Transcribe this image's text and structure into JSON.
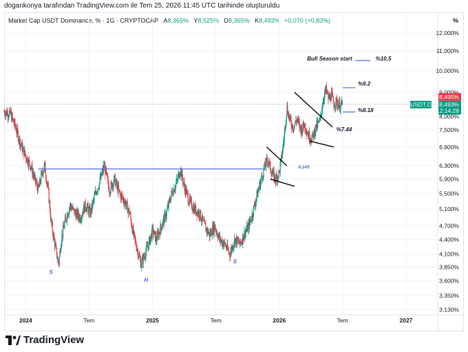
{
  "caption": "dogankonya tarafından TradingView.com ile Tem 25, 2026 11:45 UTC tarihinde oluşturuldu",
  "legend": {
    "symbol": "Market Cap USDT Dominance, % · 1G · CRYPTOCAP",
    "open_label": "A",
    "open": "8,365%",
    "high_label": "Y",
    "high": "8,525%",
    "low_label": "D",
    "low": "8,365%",
    "close_label": "K",
    "close": "8,493%",
    "change": "+0,070 (+0,83%)"
  },
  "percent_header": "%",
  "brand": "TradingView",
  "colors": {
    "up": "#089981",
    "down": "#f23645",
    "drawing": "#4a6cdb",
    "trendline": "#000000"
  },
  "chart_data": {
    "type": "candlestick",
    "title": "Market Cap USDT Dominance",
    "y_scale": "log",
    "ylim": [
      3.05,
      12.5
    ],
    "y_ticks": [
      {
        "value": 12.0,
        "label": "12,000%"
      },
      {
        "value": 11.0,
        "label": "11,000%"
      },
      {
        "value": 10.0,
        "label": "10,000%"
      },
      {
        "value": 9.0,
        "label": "9,000%"
      },
      {
        "value": 8.0,
        "label": "8,000%"
      },
      {
        "value": 7.5,
        "label": "7,500%"
      },
      {
        "value": 6.9,
        "label": "6,900%"
      },
      {
        "value": 6.3,
        "label": "6,300%"
      },
      {
        "value": 5.9,
        "label": "5,900%"
      },
      {
        "value": 5.5,
        "label": "5,500%"
      },
      {
        "value": 5.1,
        "label": "5,100%"
      },
      {
        "value": 4.7,
        "label": "4,700%"
      },
      {
        "value": 4.4,
        "label": "4,400%"
      },
      {
        "value": 4.1,
        "label": "4,100%"
      },
      {
        "value": 3.85,
        "label": "3,850%"
      },
      {
        "value": 3.6,
        "label": "3,600%"
      },
      {
        "value": 3.35,
        "label": "3,350%"
      },
      {
        "value": 3.13,
        "label": "3,130%"
      }
    ],
    "x_ticks": [
      {
        "t": 2024.0,
        "label": "2024",
        "bold": true
      },
      {
        "t": 2024.5,
        "label": "Tem",
        "bold": false
      },
      {
        "t": 2025.0,
        "label": "2025",
        "bold": true
      },
      {
        "t": 2025.5,
        "label": "Tem",
        "bold": false
      },
      {
        "t": 2026.0,
        "label": "2026",
        "bold": true
      },
      {
        "t": 2026.5,
        "label": "Tem",
        "bold": false
      },
      {
        "t": 2027.0,
        "label": "2027",
        "bold": true
      }
    ],
    "xlim": [
      2023.83,
      2027.25
    ],
    "last_price": {
      "value": 8.493,
      "symbol": "USDT.D",
      "price_label": "8,493%",
      "countdown": "12:14:28"
    },
    "last_high": {
      "value": 8.495,
      "label": "8,495%"
    },
    "price_path": [
      [
        2023.83,
        8.2
      ],
      [
        2023.88,
        8.1
      ],
      [
        2023.92,
        7.6
      ],
      [
        2023.96,
        7.0
      ],
      [
        2024.0,
        6.6
      ],
      [
        2024.04,
        6.3
      ],
      [
        2024.07,
        5.9
      ],
      [
        2024.1,
        5.6
      ],
      [
        2024.13,
        6.1
      ],
      [
        2024.15,
        6.3
      ],
      [
        2024.18,
        5.5
      ],
      [
        2024.2,
        4.8
      ],
      [
        2024.23,
        4.3
      ],
      [
        2024.26,
        3.9
      ],
      [
        2024.28,
        4.4
      ],
      [
        2024.31,
        4.8
      ],
      [
        2024.35,
        5.2
      ],
      [
        2024.39,
        5.0
      ],
      [
        2024.43,
        4.9
      ],
      [
        2024.47,
        5.2
      ],
      [
        2024.51,
        5.0
      ],
      [
        2024.55,
        5.5
      ],
      [
        2024.59,
        5.9
      ],
      [
        2024.62,
        6.3
      ],
      [
        2024.66,
        5.6
      ],
      [
        2024.7,
        5.9
      ],
      [
        2024.74,
        5.5
      ],
      [
        2024.78,
        5.3
      ],
      [
        2024.82,
        5.0
      ],
      [
        2024.85,
        4.5
      ],
      [
        2024.88,
        4.2
      ],
      [
        2024.91,
        3.9
      ],
      [
        2024.94,
        4.1
      ],
      [
        2024.97,
        4.3
      ],
      [
        2025.0,
        4.6
      ],
      [
        2025.03,
        4.4
      ],
      [
        2025.07,
        4.7
      ],
      [
        2025.11,
        5.0
      ],
      [
        2025.15,
        5.5
      ],
      [
        2025.19,
        5.8
      ],
      [
        2025.22,
        6.2
      ],
      [
        2025.25,
        5.7
      ],
      [
        2025.29,
        5.3
      ],
      [
        2025.33,
        5.1
      ],
      [
        2025.37,
        5.0
      ],
      [
        2025.41,
        4.7
      ],
      [
        2025.45,
        4.5
      ],
      [
        2025.49,
        4.7
      ],
      [
        2025.53,
        4.4
      ],
      [
        2025.57,
        4.3
      ],
      [
        2025.61,
        4.1
      ],
      [
        2025.65,
        4.4
      ],
      [
        2025.69,
        4.3
      ],
      [
        2025.72,
        4.5
      ],
      [
        2025.76,
        4.7
      ],
      [
        2025.79,
        5.0
      ],
      [
        2025.82,
        5.4
      ],
      [
        2025.85,
        5.8
      ],
      [
        2025.88,
        6.2
      ],
      [
        2025.91,
        6.5
      ],
      [
        2025.94,
        6.1
      ],
      [
        2025.97,
        5.9
      ],
      [
        2026.0,
        6.1
      ],
      [
        2026.02,
        6.6
      ],
      [
        2026.04,
        7.3
      ],
      [
        2026.06,
        8.4
      ],
      [
        2026.08,
        7.9
      ],
      [
        2026.11,
        7.6
      ],
      [
        2026.14,
        7.9
      ],
      [
        2026.17,
        7.5
      ],
      [
        2026.2,
        7.7
      ],
      [
        2026.23,
        7.3
      ],
      [
        2026.26,
        7.2
      ],
      [
        2026.29,
        7.6
      ],
      [
        2026.32,
        7.8
      ],
      [
        2026.35,
        8.8
      ],
      [
        2026.37,
        9.1
      ],
      [
        2026.39,
        8.7
      ],
      [
        2026.41,
        8.9
      ],
      [
        2026.43,
        8.5
      ],
      [
        2026.45,
        8.6
      ],
      [
        2026.48,
        8.4
      ],
      [
        2026.5,
        8.5
      ]
    ],
    "annotations": [
      {
        "text": "S",
        "t": 2024.2,
        "v": 3.72
      },
      {
        "text": "H",
        "t": 2024.95,
        "v": 3.58
      },
      {
        "text": "S",
        "t": 2025.65,
        "v": 3.92
      },
      {
        "text": "6.245",
        "t": 2026.15,
        "v": 6.22
      },
      {
        "text": "%7.44",
        "t": 2026.45,
        "v": 7.44
      },
      {
        "text": "%8.18",
        "t": 2026.62,
        "v": 8.18
      },
      {
        "text": "%9.2",
        "t": 2026.62,
        "v": 9.3
      },
      {
        "text": "%10.5",
        "t": 2026.76,
        "v": 10.5
      },
      {
        "text": "Bull Season start",
        "t": 2026.22,
        "v": 10.5
      }
    ],
    "horizontal_lines": [
      {
        "t1": 2024.1,
        "t2": 2025.87,
        "v": 6.2
      },
      {
        "t1": 2026.5,
        "t2": 2026.6,
        "v": 9.2
      },
      {
        "t1": 2026.5,
        "t2": 2026.6,
        "v": 8.18
      },
      {
        "t1": 2026.6,
        "t2": 2026.72,
        "v": 10.5
      }
    ],
    "trend_lines": [
      {
        "t1": 2025.9,
        "v1": 6.9,
        "t2": 2026.06,
        "v2": 6.3
      },
      {
        "t1": 2025.93,
        "v1": 5.9,
        "t2": 2026.12,
        "v2": 5.7
      },
      {
        "t1": 2026.12,
        "v1": 9.0,
        "t2": 2026.42,
        "v2": 7.6
      },
      {
        "t1": 2026.24,
        "v1": 7.1,
        "t2": 2026.43,
        "v2": 6.9
      }
    ],
    "dotted_reference": {
      "v": 8.493
    }
  }
}
